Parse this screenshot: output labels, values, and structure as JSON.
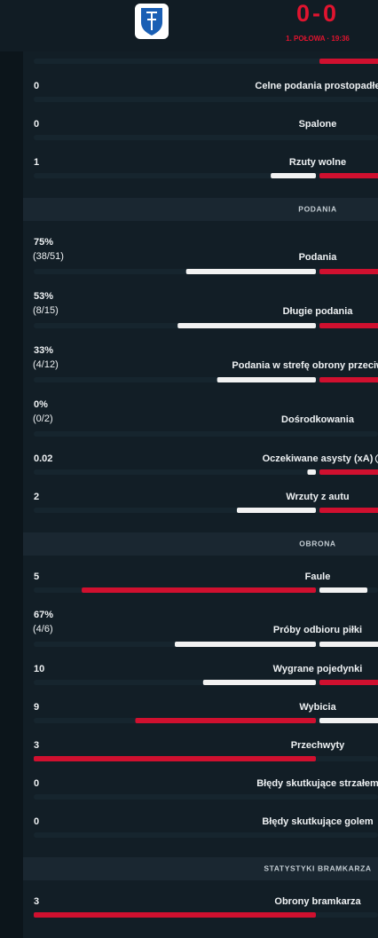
{
  "header": {
    "score": "0-0",
    "period": "1. POŁOWA · 19:36"
  },
  "colors": {
    "home": "#f2f2f2",
    "away": "#d0102f"
  },
  "items": [
    {
      "bars": [
        0,
        100
      ],
      "bar_colors": [
        "home",
        "away"
      ]
    },
    {
      "value": "0",
      "label": "Celne podania prostopadłe",
      "bars": [
        0,
        0
      ],
      "bar_colors": [
        "home",
        "away"
      ]
    },
    {
      "value": "0",
      "label": "Spalone",
      "bars": [
        0,
        0
      ],
      "bar_colors": [
        "home",
        "away"
      ]
    },
    {
      "value": "1",
      "label": "Rzuty wolne",
      "bars": [
        16,
        84
      ],
      "bar_colors": [
        "home",
        "away"
      ]
    },
    {
      "section": "PODANIA"
    },
    {
      "value": "75%",
      "detail": "(38/51)",
      "label": "Podania",
      "bars": [
        46,
        54
      ],
      "bar_colors": [
        "home",
        "away"
      ]
    },
    {
      "value": "53%",
      "detail": "(8/15)",
      "label": "Długie podania",
      "bars": [
        49,
        51
      ],
      "bar_colors": [
        "home",
        "away"
      ]
    },
    {
      "value": "33%",
      "detail": "(4/12)",
      "label": "Podania w strefę obrony przeciwnika",
      "bars": [
        35,
        65
      ],
      "bar_colors": [
        "home",
        "away"
      ]
    },
    {
      "value": "0%",
      "detail": "(0/2)",
      "label": "Dośrodkowania",
      "bars": [
        0,
        0
      ],
      "bar_colors": [
        "home",
        "away"
      ]
    },
    {
      "value": "0.02",
      "label": "Oczekiwane asysty (xA)",
      "info": true,
      "bars": [
        3,
        97
      ],
      "bar_colors": [
        "home",
        "away"
      ]
    },
    {
      "value": "2",
      "label": "Wrzuty z autu",
      "bars": [
        28,
        72
      ],
      "bar_colors": [
        "home",
        "away"
      ]
    },
    {
      "section": "OBRONA"
    },
    {
      "value": "5",
      "label": "Faule",
      "bars": [
        83,
        17
      ],
      "bar_colors": [
        "away",
        "home"
      ]
    },
    {
      "value": "67%",
      "detail": "(4/6)",
      "label": "Próby odbioru piłki",
      "bars": [
        50,
        50
      ],
      "bar_colors": [
        "home",
        "home"
      ]
    },
    {
      "value": "10",
      "label": "Wygrane pojedynki",
      "bars": [
        40,
        60
      ],
      "bar_colors": [
        "home",
        "away"
      ]
    },
    {
      "value": "9",
      "label": "Wybicia",
      "bars": [
        64,
        36
      ],
      "bar_colors": [
        "away",
        "home"
      ]
    },
    {
      "value": "3",
      "label": "Przechwyty",
      "bars": [
        100,
        0
      ],
      "bar_colors": [
        "away",
        "home"
      ]
    },
    {
      "value": "0",
      "label": "Błędy skutkujące strzałem",
      "bars": [
        0,
        0
      ],
      "bar_colors": [
        "home",
        "away"
      ]
    },
    {
      "value": "0",
      "label": "Błędy skutkujące golem",
      "bars": [
        0,
        0
      ],
      "bar_colors": [
        "home",
        "away"
      ]
    },
    {
      "section": "STATYSTYKI BRAMKARZA"
    },
    {
      "value": "3",
      "label": "Obrony bramkarza",
      "bars": [
        100,
        0
      ],
      "bar_colors": [
        "away",
        "home"
      ]
    }
  ]
}
